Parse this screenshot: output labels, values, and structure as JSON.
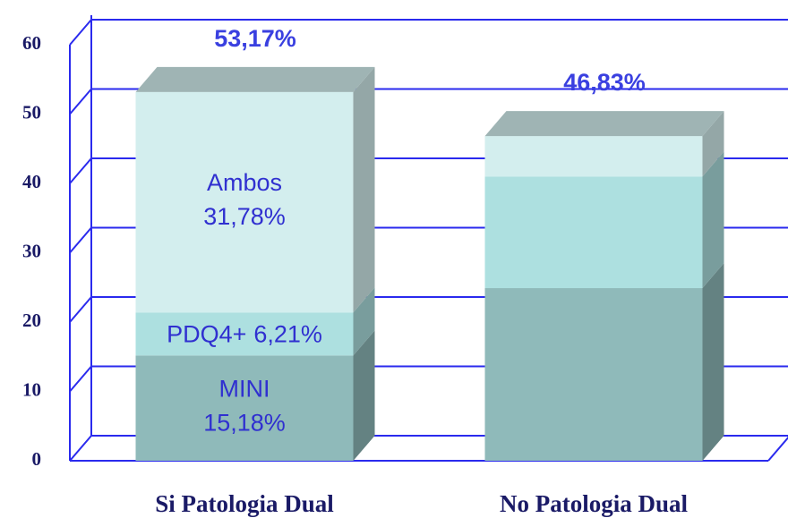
{
  "chart_data": {
    "type": "bar3d_stacked",
    "categories": [
      "Si Patologia Dual",
      "No Patologia Dual"
    ],
    "series": [
      {
        "name": "MINI",
        "color": "#8fbaba",
        "values": [
          15.18,
          24.9
        ],
        "value_labels": [
          "15,18%",
          null
        ]
      },
      {
        "name": "PDQ4+",
        "color": "#ade0e0",
        "values": [
          6.21,
          16.1
        ],
        "value_labels": [
          "6,21%",
          null
        ]
      },
      {
        "name": "Ambos",
        "color": "#d3eeee",
        "values": [
          31.78,
          5.83
        ],
        "value_labels": [
          "31,78%",
          null
        ]
      }
    ],
    "totals": [
      53.17,
      46.83
    ],
    "total_labels": [
      "53,17%",
      "46,83%"
    ],
    "ylim": [
      0,
      60
    ],
    "yticks": [
      0,
      10,
      20,
      30,
      40,
      50,
      60
    ],
    "grid": true
  }
}
